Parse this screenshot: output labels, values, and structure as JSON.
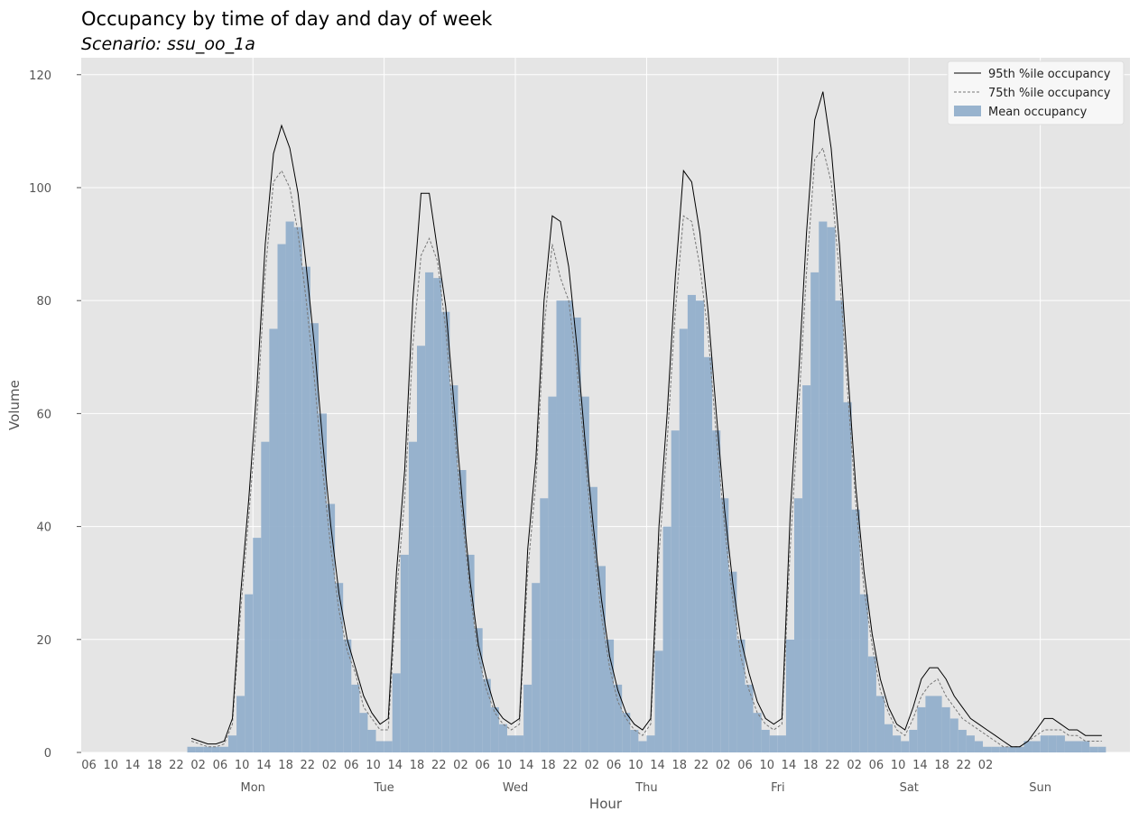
{
  "chart_data": {
    "type": "bar",
    "title": "Occupancy by time of day and day of week",
    "subtitle": "Scenario: ssu_oo_1a",
    "xlabel": "Hour",
    "ylabel": "Volume",
    "ylim": [
      0,
      123
    ],
    "yticks": [
      0,
      20,
      40,
      60,
      80,
      100,
      120
    ],
    "xlim": [
      -19.4,
      172.4
    ],
    "hour_tick_labels": [
      "06",
      "10",
      "14",
      "18",
      "22",
      "02",
      "06",
      "10",
      "14",
      "18",
      "22",
      "02",
      "06",
      "10",
      "14",
      "18",
      "22",
      "02",
      "06",
      "10",
      "14",
      "18",
      "22",
      "02",
      "06",
      "10",
      "14",
      "18",
      "22",
      "02",
      "06",
      "10",
      "14",
      "18",
      "22",
      "02",
      "06",
      "10",
      "14",
      "18",
      "22",
      "02"
    ],
    "days": [
      "Mon",
      "Tue",
      "Wed",
      "Thu",
      "Fri",
      "Sat",
      "Sun"
    ],
    "grid": true,
    "legend": {
      "position": "top-right",
      "entries": [
        "95th %ile occupancy",
        "75th %ile occupancy",
        "Mean occupancy"
      ]
    },
    "series": [
      {
        "name": "Mean occupancy",
        "kind": "bar",
        "values": [
          1,
          1,
          1,
          1,
          1,
          3,
          10,
          28,
          38,
          55,
          75,
          90,
          94,
          93,
          86,
          76,
          60,
          44,
          30,
          20,
          12,
          7,
          4,
          2,
          2,
          14,
          35,
          55,
          72,
          85,
          84,
          78,
          65,
          50,
          35,
          22,
          13,
          8,
          5,
          3,
          3,
          12,
          30,
          45,
          63,
          80,
          80,
          77,
          63,
          47,
          33,
          20,
          12,
          7,
          4,
          2,
          3,
          18,
          40,
          57,
          75,
          81,
          80,
          70,
          57,
          45,
          32,
          20,
          12,
          7,
          4,
          3,
          3,
          20,
          45,
          65,
          85,
          94,
          93,
          80,
          62,
          43,
          28,
          17,
          10,
          5,
          3,
          2,
          4,
          8,
          10,
          10,
          8,
          6,
          4,
          3,
          2,
          1,
          1,
          1,
          1,
          1,
          2,
          2,
          3,
          3,
          3,
          2,
          2,
          2,
          1,
          1
        ]
      },
      {
        "name": "75th %ile occupancy",
        "kind": "line",
        "values": [
          2,
          1.5,
          1,
          1,
          1.5,
          5,
          25,
          42,
          60,
          85,
          101,
          103,
          100,
          92,
          80,
          66,
          50,
          36,
          25,
          18,
          14,
          8,
          6,
          4,
          4,
          28,
          45,
          72,
          88,
          91,
          87,
          75,
          58,
          42,
          28,
          17,
          11,
          7,
          5,
          4,
          5,
          32,
          48,
          75,
          90,
          84,
          80,
          68,
          52,
          37,
          24,
          15,
          9,
          6,
          4,
          3,
          5,
          35,
          55,
          78,
          95,
          94,
          86,
          74,
          56,
          40,
          27,
          17,
          11,
          7,
          5,
          4,
          5,
          36,
          60,
          85,
          105,
          107,
          101,
          85,
          64,
          44,
          29,
          19,
          11,
          7,
          4,
          3,
          6,
          10,
          12,
          13,
          10,
          8,
          6,
          5,
          4,
          3,
          2,
          1,
          1,
          1,
          2,
          3,
          4,
          4,
          4,
          3,
          3,
          2,
          2,
          2
        ]
      },
      {
        "name": "95th %ile occupancy",
        "kind": "line",
        "values": [
          2.5,
          2,
          1.5,
          1.5,
          2,
          6,
          28,
          45,
          65,
          90,
          106,
          111,
          107,
          99,
          86,
          72,
          55,
          40,
          28,
          20,
          15,
          10,
          7,
          5,
          6,
          32,
          50,
          80,
          99,
          99,
          89,
          79,
          62,
          45,
          30,
          19,
          13,
          8,
          6,
          5,
          6,
          36,
          52,
          80,
          95,
          94,
          86,
          72,
          55,
          40,
          27,
          17,
          11,
          7,
          5,
          4,
          6,
          40,
          60,
          84,
          103,
          101,
          92,
          78,
          60,
          43,
          30,
          20,
          14,
          9,
          6,
          5,
          6,
          42,
          66,
          92,
          112,
          117,
          107,
          90,
          68,
          47,
          32,
          21,
          13,
          8,
          5,
          4,
          8,
          13,
          15,
          15,
          13,
          10,
          8,
          6,
          5,
          4,
          3,
          2,
          1,
          1,
          2,
          4,
          6,
          6,
          5,
          4,
          4,
          3,
          3,
          3
        ]
      }
    ]
  }
}
